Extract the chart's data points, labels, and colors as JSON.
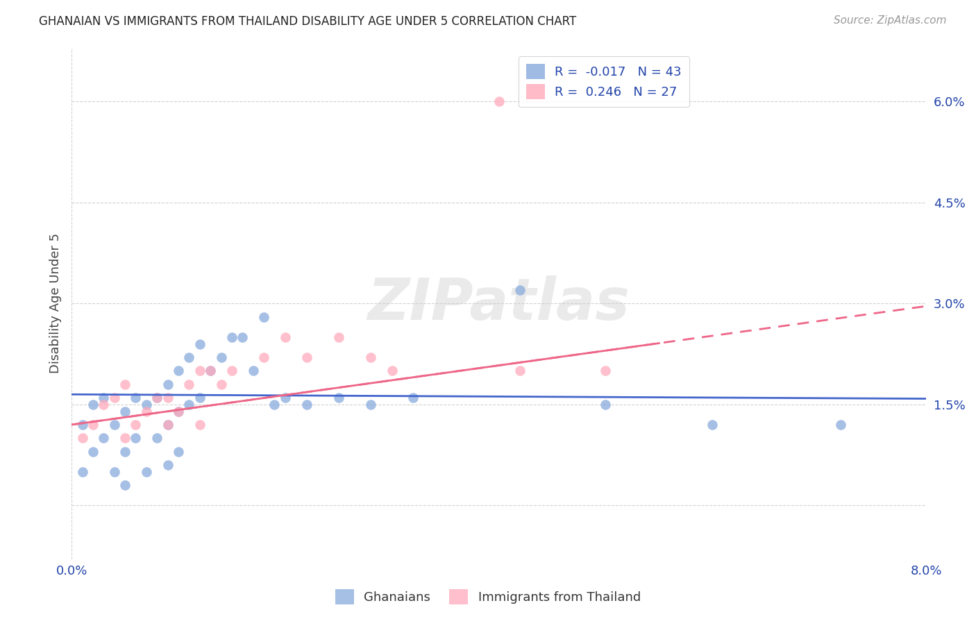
{
  "title": "GHANAIAN VS IMMIGRANTS FROM THAILAND DISABILITY AGE UNDER 5 CORRELATION CHART",
  "source": "Source: ZipAtlas.com",
  "ylabel": "Disability Age Under 5",
  "xmin": 0.0,
  "xmax": 0.08,
  "ymin": -0.008,
  "ymax": 0.068,
  "yticks": [
    0.0,
    0.015,
    0.03,
    0.045,
    0.06
  ],
  "ytick_labels": [
    "",
    "1.5%",
    "3.0%",
    "4.5%",
    "6.0%"
  ],
  "ghanaian_color": "#88aadd",
  "thailand_color": "#ffaabb",
  "ghanaian_R": -0.017,
  "ghanaian_N": 43,
  "thailand_R": 0.246,
  "thailand_N": 27,
  "legend_R_color": "#2244aa",
  "ghanaian_x": [
    0.001,
    0.001,
    0.002,
    0.002,
    0.003,
    0.003,
    0.004,
    0.004,
    0.005,
    0.005,
    0.005,
    0.006,
    0.006,
    0.007,
    0.007,
    0.008,
    0.008,
    0.009,
    0.009,
    0.009,
    0.01,
    0.01,
    0.01,
    0.011,
    0.011,
    0.012,
    0.012,
    0.013,
    0.014,
    0.015,
    0.016,
    0.017,
    0.018,
    0.019,
    0.02,
    0.022,
    0.025,
    0.028,
    0.032,
    0.042,
    0.05,
    0.06,
    0.072
  ],
  "ghanaian_y": [
    0.005,
    0.012,
    0.008,
    0.015,
    0.01,
    0.016,
    0.012,
    0.005,
    0.014,
    0.008,
    0.003,
    0.016,
    0.01,
    0.015,
    0.005,
    0.016,
    0.01,
    0.018,
    0.012,
    0.006,
    0.02,
    0.014,
    0.008,
    0.022,
    0.015,
    0.024,
    0.016,
    0.02,
    0.022,
    0.025,
    0.025,
    0.02,
    0.028,
    0.015,
    0.016,
    0.015,
    0.016,
    0.015,
    0.016,
    0.032,
    0.015,
    0.012,
    0.012
  ],
  "thailand_x": [
    0.001,
    0.002,
    0.003,
    0.004,
    0.005,
    0.005,
    0.006,
    0.007,
    0.008,
    0.009,
    0.009,
    0.01,
    0.011,
    0.012,
    0.012,
    0.013,
    0.014,
    0.015,
    0.018,
    0.02,
    0.022,
    0.025,
    0.028,
    0.03,
    0.04,
    0.042,
    0.05
  ],
  "thailand_y": [
    0.01,
    0.012,
    0.015,
    0.016,
    0.01,
    0.018,
    0.012,
    0.014,
    0.016,
    0.016,
    0.012,
    0.014,
    0.018,
    0.02,
    0.012,
    0.02,
    0.018,
    0.02,
    0.022,
    0.025,
    0.022,
    0.025,
    0.022,
    0.02,
    0.06,
    0.02,
    0.02
  ],
  "background_color": "#ffffff",
  "grid_color": "#cccccc",
  "watermark": "ZIPatlas",
  "blue_line_color": "#4466cc",
  "pink_line_color": "#ee6688",
  "blue_line_intercept": 0.0165,
  "blue_line_slope": -0.008,
  "pink_line_intercept": 0.012,
  "pink_line_slope": 0.22
}
